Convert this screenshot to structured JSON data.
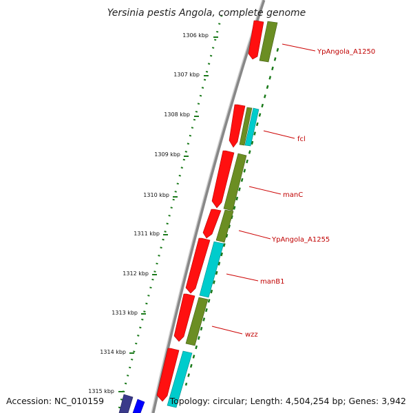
{
  "title": "Yersinia pestis Angola, complete genome",
  "accession": "Accession: NC_010159",
  "summary": "Topology: circular; Length: 4,504,254 bp; Genes: 3,942",
  "colors": {
    "backbone": "#8a8a8a",
    "tick": "#1a7a1a",
    "forward_gene": "#ff0000",
    "olive_gene": "#6b8e23",
    "cyan_gene": "#00cccc",
    "label_line": "#cc0000",
    "dark_blue_gene": "#3a3a8a",
    "blue_gene": "#0000ff"
  },
  "ticks": [
    {
      "label": "1306 kbp"
    },
    {
      "label": "1307 kbp"
    },
    {
      "label": "1308 kbp"
    },
    {
      "label": "1309 kbp"
    },
    {
      "label": "1310 kbp"
    },
    {
      "label": "1311 kbp"
    },
    {
      "label": "1312 kbp"
    },
    {
      "label": "1313 kbp"
    },
    {
      "label": "1314 kbp"
    },
    {
      "label": "1315 kbp"
    }
  ],
  "gene_labels": [
    {
      "label": "YpAngola_A1250"
    },
    {
      "label": "fcl"
    },
    {
      "label": "manC"
    },
    {
      "label": "YpAngola_A1255"
    },
    {
      "label": "manB1"
    },
    {
      "label": "wzz"
    }
  ]
}
